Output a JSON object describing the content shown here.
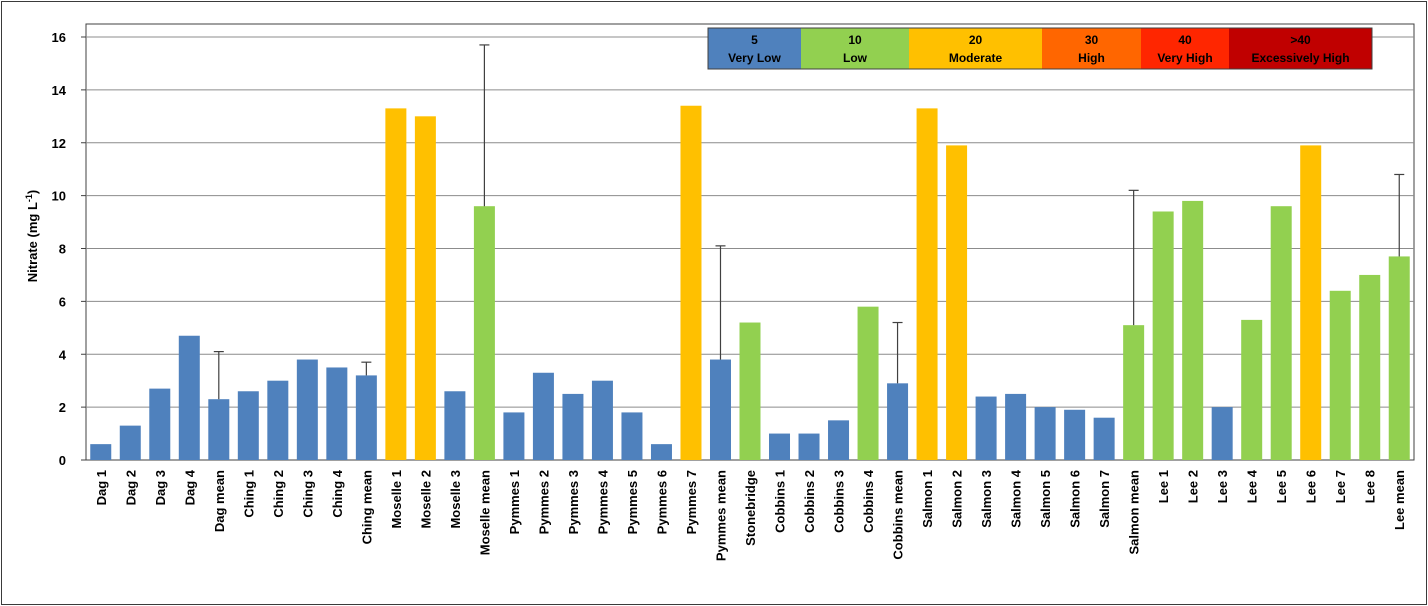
{
  "chart_data": {
    "type": "bar",
    "ylabel": "Nitrate (mg L",
    "ylabel_sup": "-1",
    "ylabel_close": ")",
    "ylim": [
      0,
      16
    ],
    "yticks": [
      0,
      2,
      4,
      6,
      8,
      10,
      12,
      14,
      16
    ],
    "grid": true,
    "categories": [
      "Dag 1",
      "Dag 2",
      "Dag 3",
      "Dag 4",
      "Dag mean",
      "Ching 1",
      "Ching 2",
      "Ching 3",
      "Ching 4",
      "Ching mean",
      "Moselle 1",
      "Moselle 2",
      "Moselle 3",
      "Moselle mean",
      "Pymmes 1",
      "Pymmes 2",
      "Pymmes 3",
      "Pymmes 4",
      "Pymmes 5",
      "Pymmes 6",
      "Pymmes 7",
      "Pymmes mean",
      "Stonebridge",
      "Cobbins 1",
      "Cobbins 2",
      "Cobbins 3",
      "Cobbins 4",
      "Cobbins mean",
      "Salmon 1",
      "Salmon 2",
      "Salmon 3",
      "Salmon 4",
      "Salmon 5",
      "Salmon 6",
      "Salmon 7",
      "Salmon mean",
      "Lee 1",
      "Lee 2",
      "Lee 3",
      "Lee 4",
      "Lee 5",
      "Lee 6",
      "Lee 7",
      "Lee 8",
      "Lee mean"
    ],
    "values": [
      0.6,
      1.3,
      2.7,
      4.7,
      2.3,
      2.6,
      3.0,
      3.8,
      3.5,
      3.2,
      13.3,
      13.0,
      2.6,
      9.6,
      1.8,
      3.3,
      2.5,
      3.0,
      1.8,
      0.6,
      13.4,
      3.8,
      5.2,
      1.0,
      1.0,
      1.5,
      5.8,
      2.9,
      13.3,
      11.9,
      2.4,
      2.5,
      2.0,
      1.9,
      1.6,
      5.1,
      9.4,
      9.8,
      2.0,
      5.3,
      9.6,
      11.9,
      6.4,
      7.0,
      7.7
    ],
    "classes": [
      "very_low",
      "very_low",
      "very_low",
      "very_low",
      "very_low",
      "very_low",
      "very_low",
      "very_low",
      "very_low",
      "very_low",
      "moderate",
      "moderate",
      "very_low",
      "low",
      "very_low",
      "very_low",
      "very_low",
      "very_low",
      "very_low",
      "very_low",
      "moderate",
      "very_low",
      "low",
      "very_low",
      "very_low",
      "very_low",
      "low",
      "very_low",
      "moderate",
      "moderate",
      "very_low",
      "very_low",
      "very_low",
      "very_low",
      "very_low",
      "low",
      "low",
      "low",
      "very_low",
      "low",
      "low",
      "moderate",
      "low",
      "low",
      "low"
    ],
    "error_bars": [
      {
        "category": "Dag mean",
        "upper": 4.1
      },
      {
        "category": "Ching mean",
        "upper": 3.7
      },
      {
        "category": "Moselle mean",
        "upper": 15.7
      },
      {
        "category": "Pymmes mean",
        "upper": 8.1
      },
      {
        "category": "Cobbins mean",
        "upper": 5.2
      },
      {
        "category": "Salmon mean",
        "upper": 10.2
      },
      {
        "category": "Lee mean",
        "upper": 10.8
      }
    ],
    "legend": {
      "position": "top-right",
      "items": [
        {
          "key": "very_low",
          "value": "5",
          "label": "Very Low",
          "color": "#4f81bd"
        },
        {
          "key": "low",
          "value": "10",
          "label": "Low",
          "color": "#92d050"
        },
        {
          "key": "moderate",
          "value": "20",
          "label": "Moderate",
          "color": "#ffc000"
        },
        {
          "key": "high",
          "value": "30",
          "label": "High",
          "color": "#ff6600"
        },
        {
          "key": "very_high",
          "value": "40",
          "label": "Very High",
          "color": "#ff2600"
        },
        {
          "key": "excessively_high",
          "value": ">40",
          "label": "Excessively High",
          "color": "#c00000"
        }
      ]
    }
  }
}
